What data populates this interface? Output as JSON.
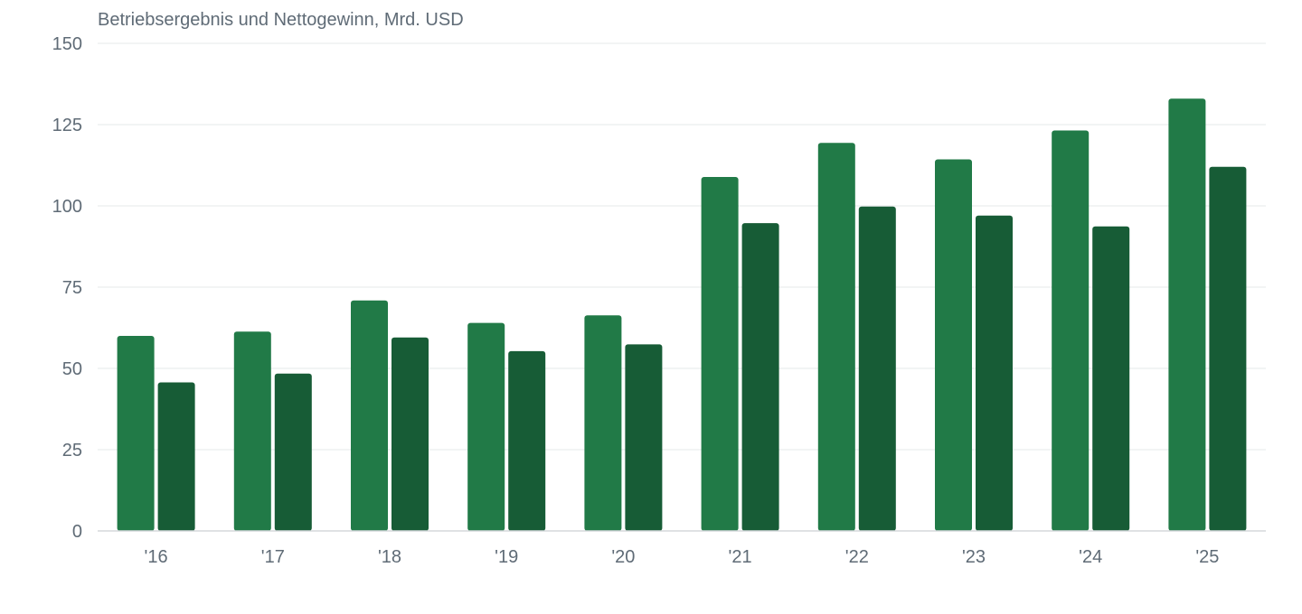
{
  "chart_data": {
    "type": "bar",
    "title": "Betriebsergebnis und Nettogewinn, Mrd. USD",
    "xlabel": "",
    "ylabel": "",
    "categories": [
      "'16",
      "'17",
      "'18",
      "'19",
      "'20",
      "'21",
      "'22",
      "'23",
      "'24",
      "'25"
    ],
    "series": [
      {
        "values": [
          60.0,
          61.3,
          70.9,
          64.0,
          66.3,
          108.9,
          119.4,
          114.3,
          123.2,
          133.0
        ],
        "color": "#217a47"
      },
      {
        "values": [
          45.7,
          48.4,
          59.5,
          55.3,
          57.4,
          94.7,
          99.8,
          97.0,
          93.7,
          112.0
        ],
        "color": "#175c36"
      }
    ],
    "ylim": [
      0,
      150
    ],
    "yticks": [
      0,
      25,
      50,
      75,
      100,
      125,
      150
    ],
    "grid": true,
    "legend": "none"
  }
}
